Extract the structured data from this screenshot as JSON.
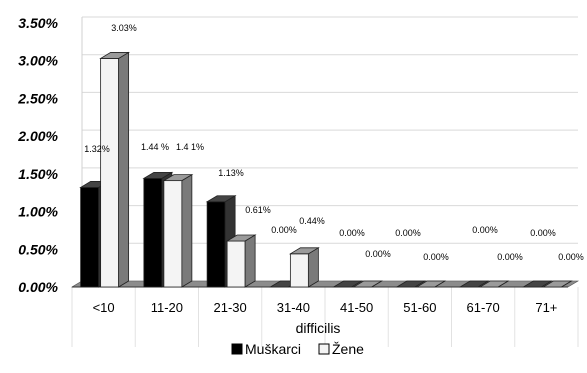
{
  "chart_data": {
    "type": "bar",
    "categories": [
      "<10",
      "11-20",
      "21-30",
      "31-40",
      "41-50",
      "51-60",
      "61-70",
      "71+"
    ],
    "series": [
      {
        "name": "Muškarci",
        "color": "#000000",
        "values": [
          1.32,
          1.44,
          1.13,
          0.0,
          0.0,
          0.0,
          0.0,
          0.0
        ],
        "labels": [
          "1.32%",
          "1.44 %",
          "1.13%",
          "0.00%",
          "0.00%",
          "0.00%",
          "0.00%",
          "0.00%"
        ]
      },
      {
        "name": "Žene",
        "color": "#f4f4f4",
        "values": [
          3.03,
          1.41,
          0.61,
          0.44,
          0.0,
          0.0,
          0.0,
          0.0
        ],
        "labels": [
          "3.03%",
          "1.4 1%",
          "0.61%",
          "0.44%",
          "0.00%",
          "0.00%",
          "0.00%",
          "0.00%"
        ]
      }
    ],
    "yticks": [
      "0.00%",
      "0.50%",
      "1.00%",
      "1.50%",
      "2.00%",
      "2.50%",
      "3.00%",
      "3.50%"
    ],
    "ylim": [
      0,
      3.5
    ],
    "xlabel": "difficilis",
    "ylabel": "",
    "title": "",
    "grid": true,
    "legend": "bottom",
    "style": "3d-column"
  }
}
